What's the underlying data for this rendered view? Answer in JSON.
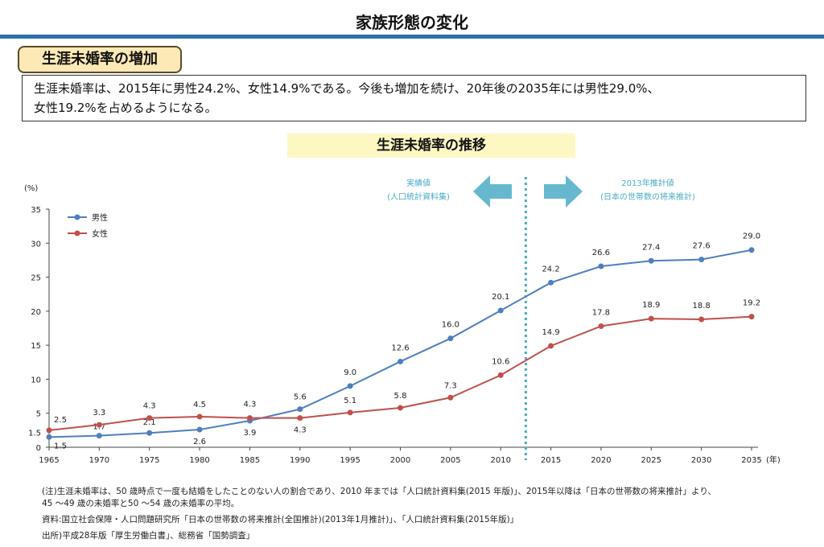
{
  "page": {
    "title": "家族形態の変化",
    "section_label": "生涯未婚率の増加",
    "summary_line1": "生涯未婚率は、2015年に男性24.2%、女性14.9%である。今後も増加を続け、20年後の2035年には男性29.0%、",
    "summary_line2": "女性19.2%を占めるようになる。",
    "chart_title": "生涯未婚率の推移",
    "note": "(注)生涯未婚率は、50 歳時点で一度も結婚をしたことのない人の割合であり、2010 年までは「人口統計資料集(2015 年版)」、2015年以降は「日本の世帯数の将来推計」より、",
    "note_line2": "45 ～49 歳の未婚率と50 ～54 歳の未婚率の平均。",
    "source": "資料:国立社会保障・人口問題研究所「日本の世帯数の将来推計(全国推計)(2013年1月推計)」、「人口統計資料集(2015年版)」",
    "origin": "出所)平成28年版「厚生労働白書」、総務省「国勢調査」"
  },
  "chart_data": {
    "type": "line",
    "ylabel": "(%)",
    "xlabel": "(年)",
    "ylim": [
      0,
      35
    ],
    "yticks": [
      0,
      5,
      10,
      15,
      20,
      25,
      30,
      35
    ],
    "categories": [
      "1965",
      "1970",
      "1975",
      "1980",
      "1985",
      "1990",
      "1995",
      "2000",
      "2005",
      "2010",
      "2015",
      "2020",
      "2025",
      "2030",
      "2035"
    ],
    "series": [
      {
        "name": "男性",
        "color": "#4f7fbf",
        "values": [
          1.5,
          1.7,
          2.1,
          2.6,
          3.9,
          5.6,
          9.0,
          12.6,
          16.0,
          20.1,
          24.2,
          26.6,
          27.4,
          27.6,
          29.0
        ]
      },
      {
        "name": "女性",
        "color": "#c0504d",
        "values": [
          2.5,
          3.3,
          4.3,
          4.5,
          4.3,
          4.3,
          5.1,
          5.8,
          7.3,
          10.6,
          14.9,
          17.8,
          18.9,
          18.8,
          19.2
        ]
      }
    ],
    "legend_position": "top-left",
    "annotations": {
      "actual_label_1": "実績値",
      "actual_label_2": "(人口統計資料集)",
      "projected_label_1": "2013年推計値",
      "projected_label_2": "(日本の世帯数の将来推計)",
      "annotation_color": "#4bacc6",
      "divider_after": "2010"
    }
  }
}
